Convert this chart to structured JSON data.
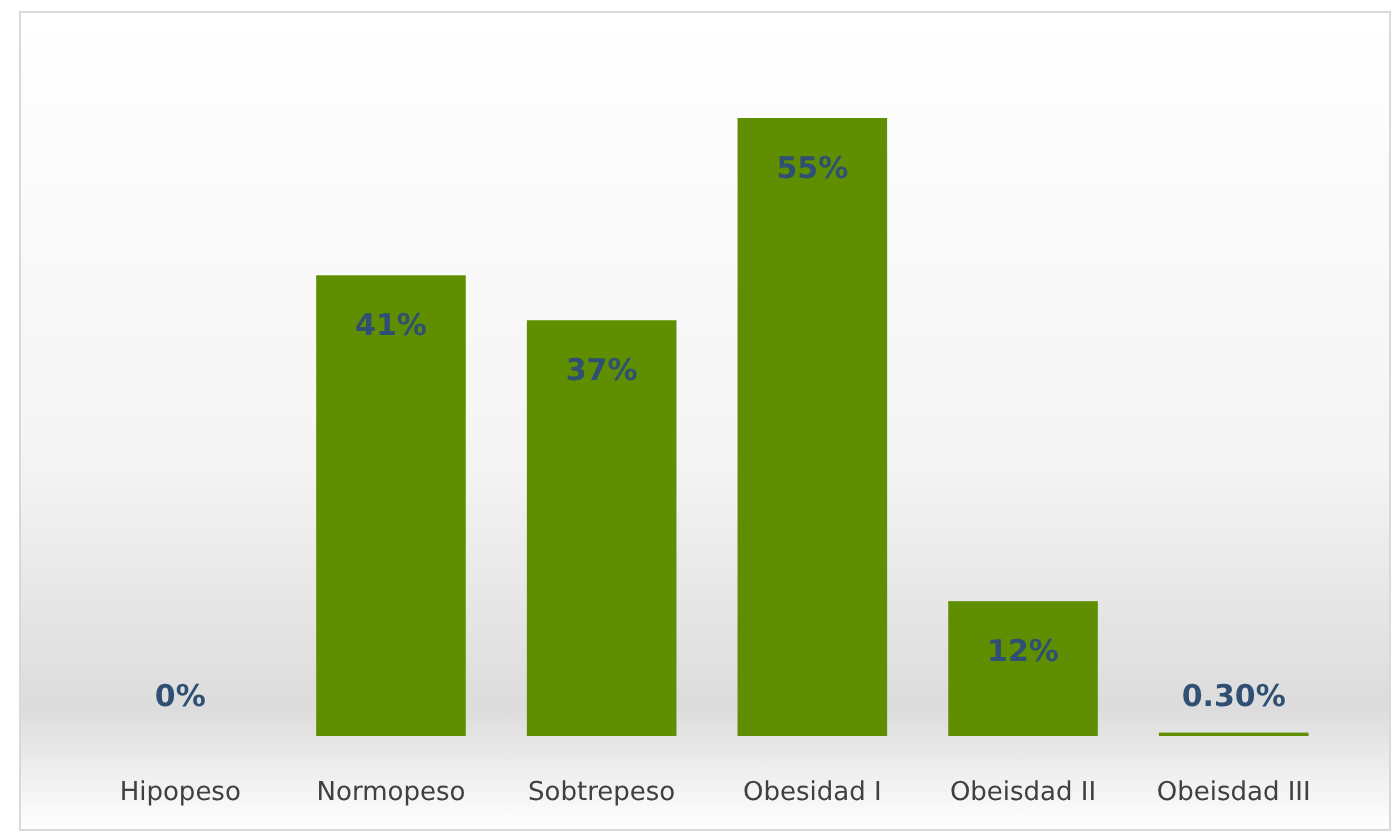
{
  "chart_data": {
    "type": "bar",
    "categories": [
      "Hipopeso",
      "Normopeso",
      "Sobtrepeso",
      "Obesidad I",
      "Obeisdad II",
      "Obeisdad III"
    ],
    "values": [
      0,
      41,
      37,
      55,
      12,
      0.3
    ],
    "value_labels": [
      "0%",
      "41%",
      "37%",
      "55%",
      "12%",
      "0.30%"
    ],
    "color": "#5f8f00",
    "grid": false
  }
}
